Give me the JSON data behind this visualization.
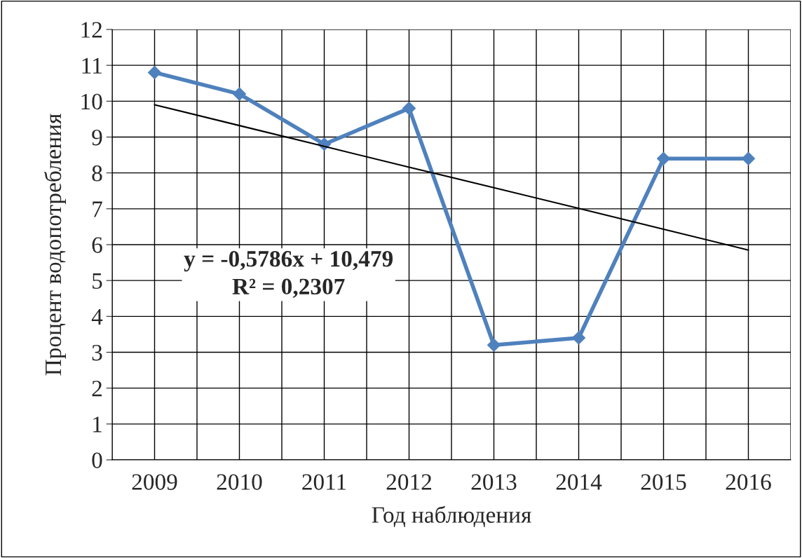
{
  "chart_data": {
    "type": "line",
    "xlabel": "Год наблюдения",
    "ylabel": "Процент водопотребления",
    "categories": [
      "2009",
      "2010",
      "2011",
      "2012",
      "2013",
      "2014",
      "2015",
      "2016"
    ],
    "series": [
      {
        "color": "#4f81bd",
        "marker": "diamond",
        "values": [
          10.8,
          10.2,
          8.8,
          9.8,
          3.2,
          3.4,
          8.4,
          8.4
        ]
      },
      {
        "color": "#000000",
        "marker": "none",
        "values": [
          9.9,
          9.32,
          8.74,
          8.16,
          7.59,
          7.01,
          6.43,
          5.85
        ]
      }
    ],
    "ylim": [
      0,
      12
    ],
    "yticks": [
      0,
      1,
      2,
      3,
      4,
      5,
      6,
      7,
      8,
      9,
      10,
      11,
      12
    ],
    "grid": true,
    "legend": false,
    "annotations": [
      "y = -0,5786x + 10,479\nR² = 0,2307"
    ]
  }
}
